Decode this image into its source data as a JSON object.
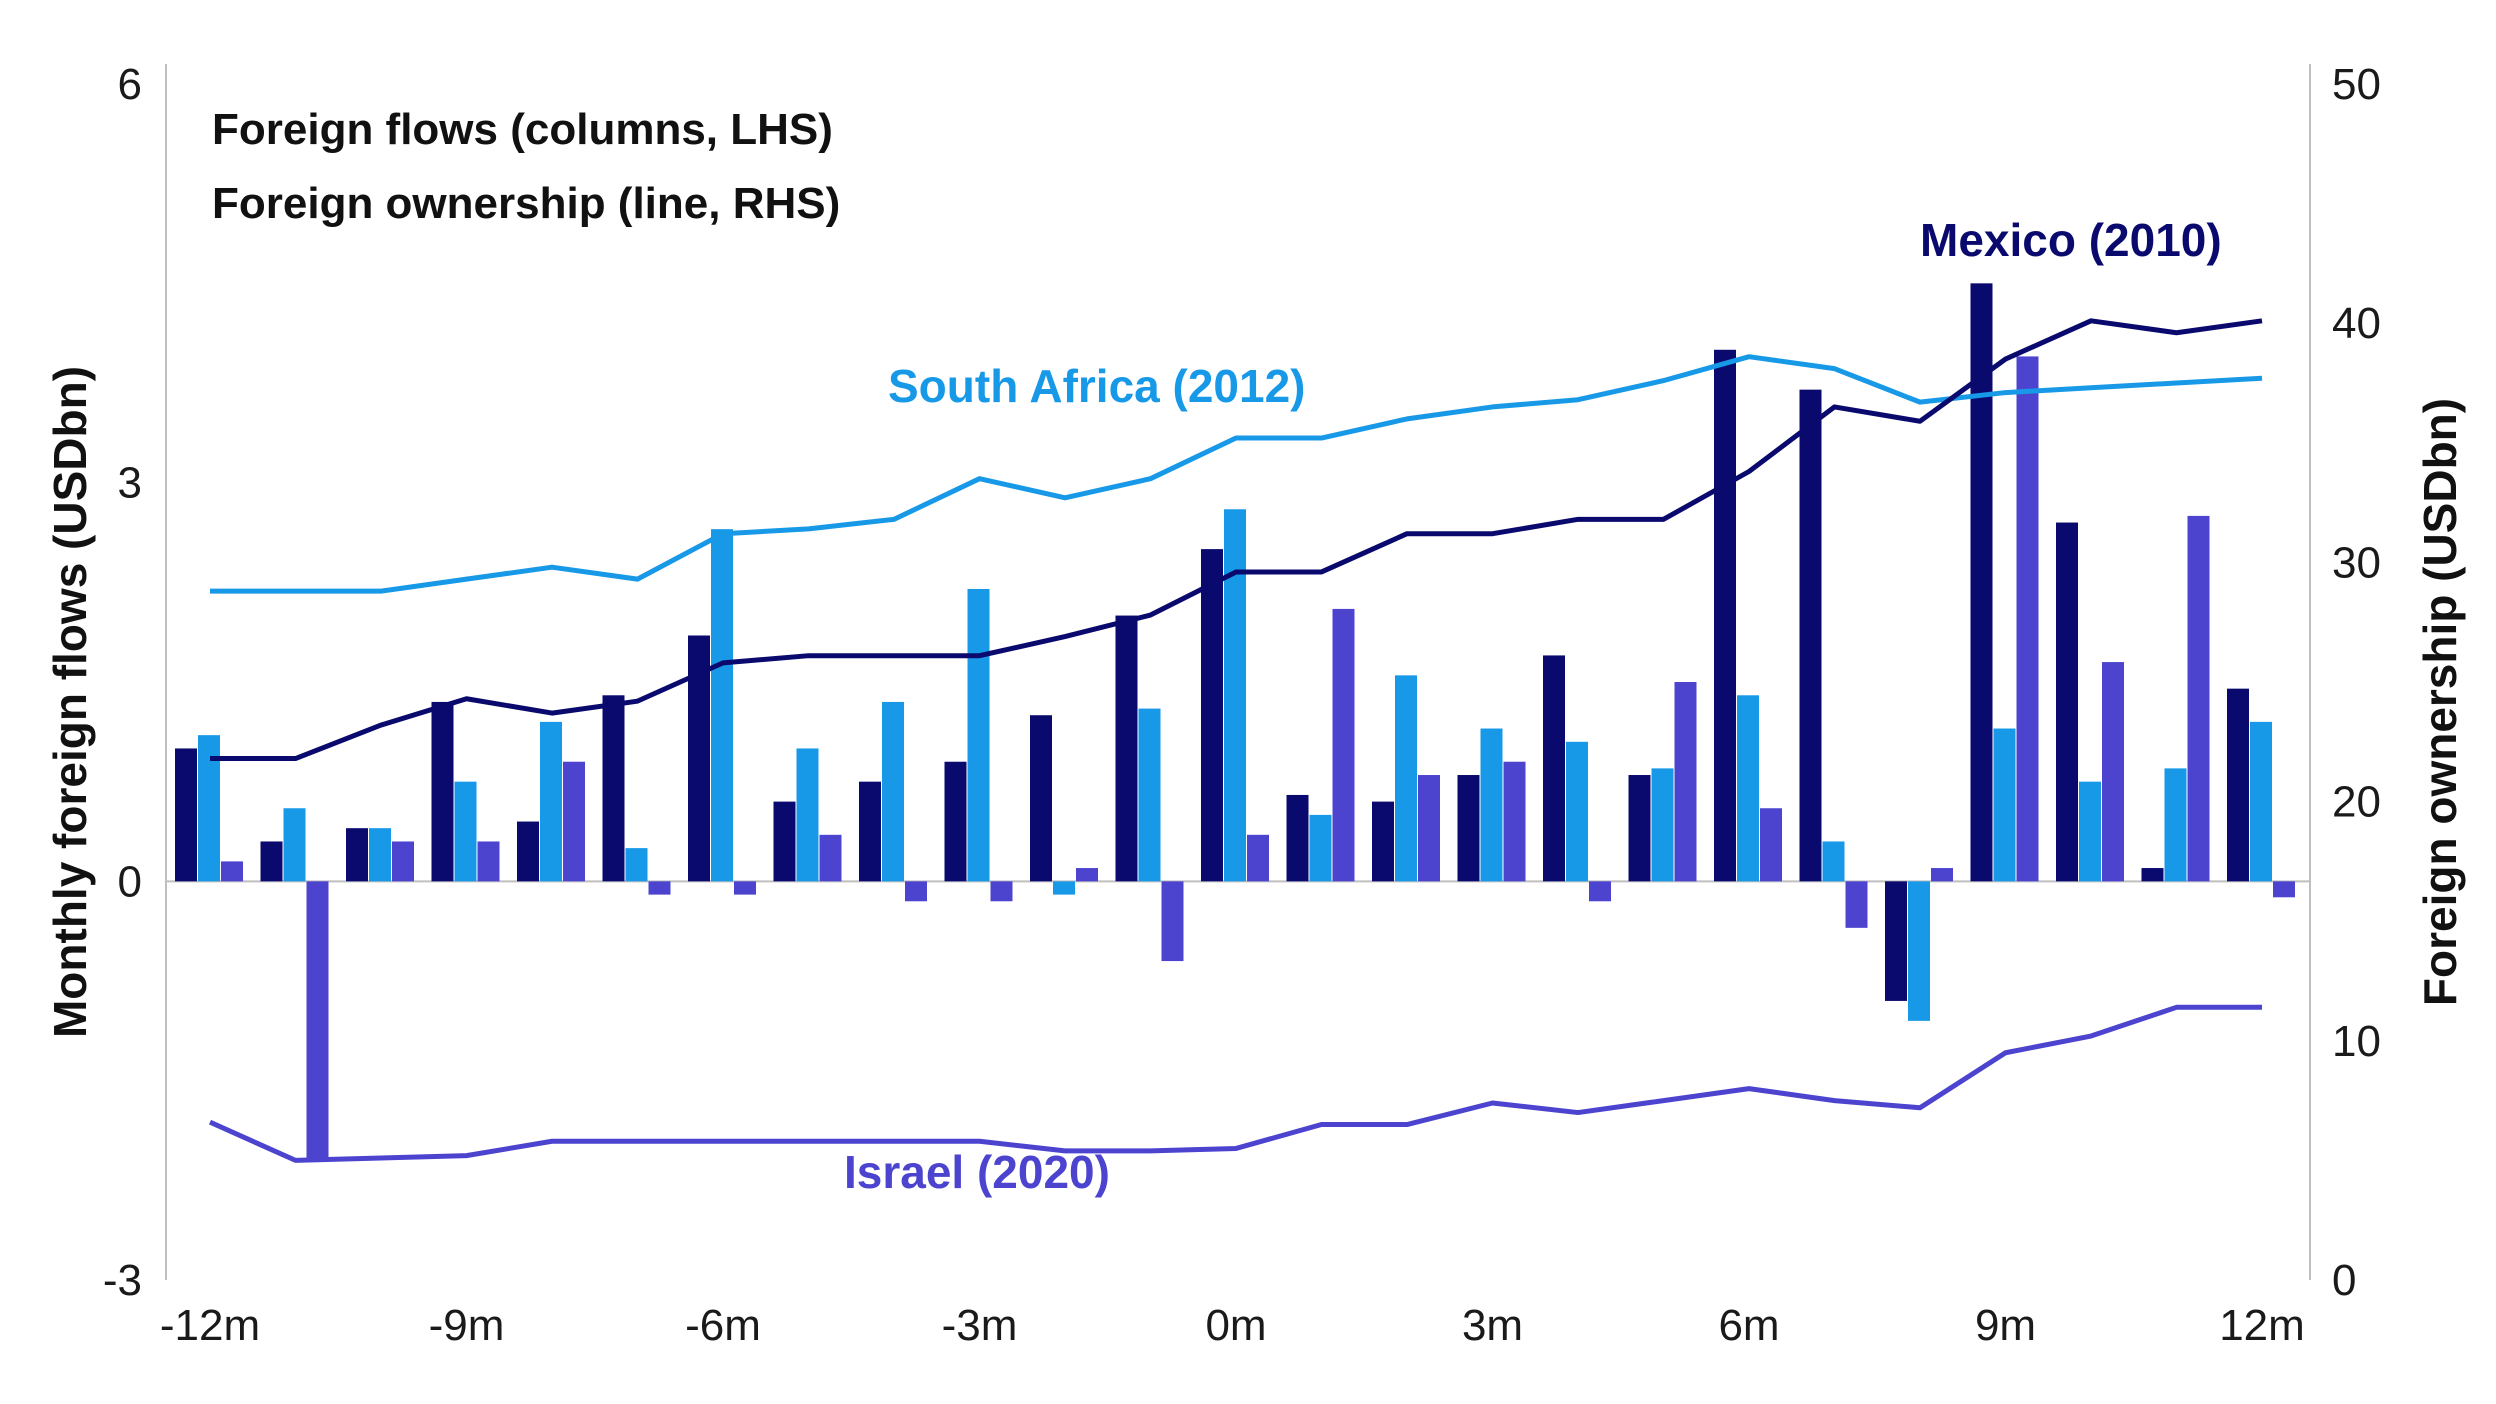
{
  "chart_data": {
    "type": "bar",
    "legend_notes": [
      "Foreign flows (columns, LHS)",
      "Foreign ownership (line, RHS)"
    ],
    "y_left_label": "Monthly foreign flows (USDbn)",
    "y_right_label": "Foreign ownership (USDbn)",
    "ylim_left": [
      -3,
      6
    ],
    "ylim_right": [
      0,
      50
    ],
    "y_left_ticks": [
      {
        "value": -3,
        "label": "-3"
      },
      {
        "value": 0,
        "label": "0"
      },
      {
        "value": 3,
        "label": "3"
      },
      {
        "value": 6,
        "label": "6"
      }
    ],
    "y_right_ticks": [
      {
        "value": 0,
        "label": "0"
      },
      {
        "value": 10,
        "label": "10"
      },
      {
        "value": 20,
        "label": "20"
      },
      {
        "value": 30,
        "label": "30"
      },
      {
        "value": 40,
        "label": "40"
      },
      {
        "value": 50,
        "label": "50"
      }
    ],
    "x_ticks": [
      {
        "value": -12,
        "label": "-12m"
      },
      {
        "value": -9,
        "label": "-9m"
      },
      {
        "value": -6,
        "label": "-6m"
      },
      {
        "value": -3,
        "label": "-3m"
      },
      {
        "value": 0,
        "label": "0m"
      },
      {
        "value": 3,
        "label": "3m"
      },
      {
        "value": 6,
        "label": "6m"
      },
      {
        "value": 9,
        "label": "9m"
      },
      {
        "value": 12,
        "label": "12m"
      }
    ],
    "months": [
      -12,
      -11,
      -10,
      -9,
      -8,
      -7,
      -6,
      -5,
      -4,
      -3,
      -2,
      -1,
      0,
      1,
      2,
      3,
      4,
      5,
      6,
      7,
      8,
      9,
      10,
      11,
      12
    ],
    "series": [
      {
        "name": "Mexico (2010)",
        "color": "#0a0a6e",
        "flows": [
          1.0,
          0.3,
          0.4,
          1.35,
          0.45,
          1.4,
          1.85,
          0.6,
          0.75,
          0.9,
          1.25,
          2.0,
          2.5,
          0.65,
          0.6,
          0.8,
          1.7,
          0.8,
          4.0,
          3.7,
          -0.9,
          4.5,
          2.7,
          0.1,
          1.45
        ],
        "ownership": [
          21.8,
          21.8,
          23.2,
          24.3,
          23.7,
          24.2,
          25.8,
          26.1,
          26.1,
          26.1,
          26.9,
          27.8,
          29.6,
          29.6,
          31.2,
          31.2,
          31.8,
          31.8,
          33.8,
          36.5,
          35.9,
          38.5,
          40.1,
          39.6,
          40.1
        ]
      },
      {
        "name": "South Africa (2012)",
        "color": "#1899e8",
        "flows": [
          1.1,
          0.55,
          0.4,
          0.75,
          1.2,
          0.25,
          2.65,
          1.0,
          1.35,
          2.2,
          -0.1,
          1.3,
          2.8,
          0.5,
          1.55,
          1.15,
          1.05,
          0.85,
          1.4,
          0.3,
          -1.05,
          1.15,
          0.75,
          0.85,
          1.2
        ]
      },
      {
        "name": "Israel (2020)",
        "color": "#4c44cf",
        "flows": [
          0.15,
          -2.1,
          0.3,
          0.3,
          0.9,
          -0.1,
          -0.1,
          0.35,
          -0.15,
          -0.15,
          0.1,
          -0.6,
          0.35,
          2.05,
          0.8,
          0.9,
          -0.15,
          1.5,
          0.55,
          -0.35,
          0.1,
          3.95,
          1.65,
          2.75,
          -0.12
        ],
        "ownership": [
          6.6,
          5.0,
          5.1,
          5.2,
          5.8,
          5.8,
          5.8,
          5.8,
          5.8,
          5.8,
          5.4,
          5.4,
          5.5,
          6.5,
          6.5,
          7.4,
          7.0,
          7.5,
          8.0,
          7.5,
          7.2,
          9.5,
          10.2,
          11.4,
          11.4
        ]
      }
    ],
    "sa_ownership": [
      28.8,
      28.8,
      28.8,
      29.3,
      29.8,
      29.3,
      31.2,
      31.4,
      31.8,
      33.5,
      32.7,
      33.5,
      35.2,
      35.2,
      36.0,
      36.5,
      36.8,
      37.6,
      38.6,
      38.1,
      36.7,
      37.1,
      37.3,
      37.5,
      37.7
    ]
  }
}
